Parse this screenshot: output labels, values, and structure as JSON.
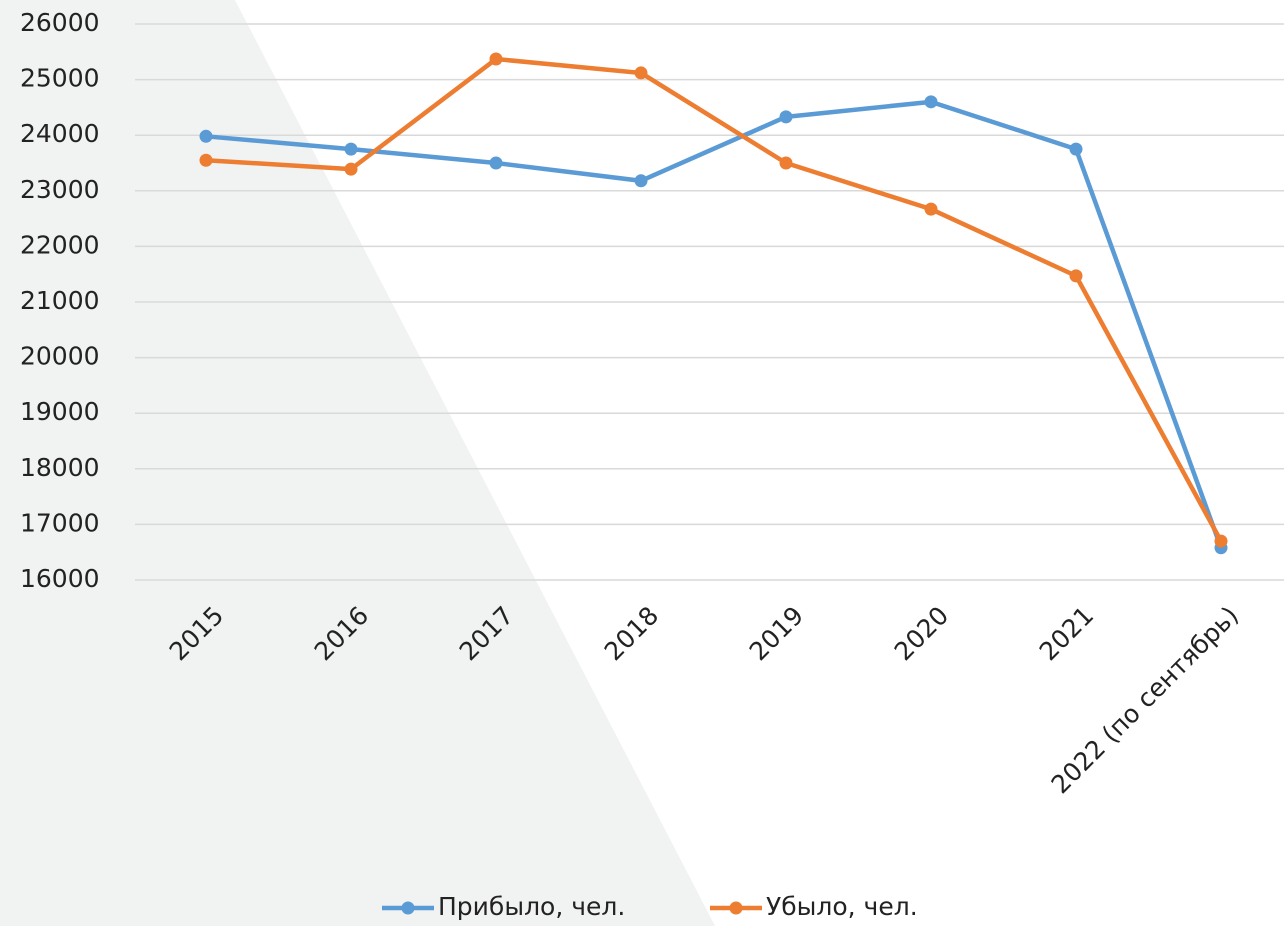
{
  "chart_data": {
    "type": "line",
    "categories": [
      "2015",
      "2016",
      "2017",
      "2018",
      "2019",
      "2020",
      "2021",
      "2022 (по сентябрь)"
    ],
    "series": [
      {
        "name": "Прибыло, чел.",
        "color": "#5b9bd5",
        "values": [
          23980,
          23750,
          23500,
          23180,
          24330,
          24600,
          23750,
          16580
        ]
      },
      {
        "name": "Убыло, чел.",
        "color": "#ed7d31",
        "values": [
          23550,
          23390,
          25370,
          25120,
          23500,
          22670,
          21470,
          16700
        ]
      }
    ],
    "ylim": [
      16000,
      26000
    ],
    "yticks": [
      16000,
      17000,
      18000,
      19000,
      20000,
      21000,
      22000,
      23000,
      24000,
      25000,
      26000
    ],
    "grid": true
  }
}
